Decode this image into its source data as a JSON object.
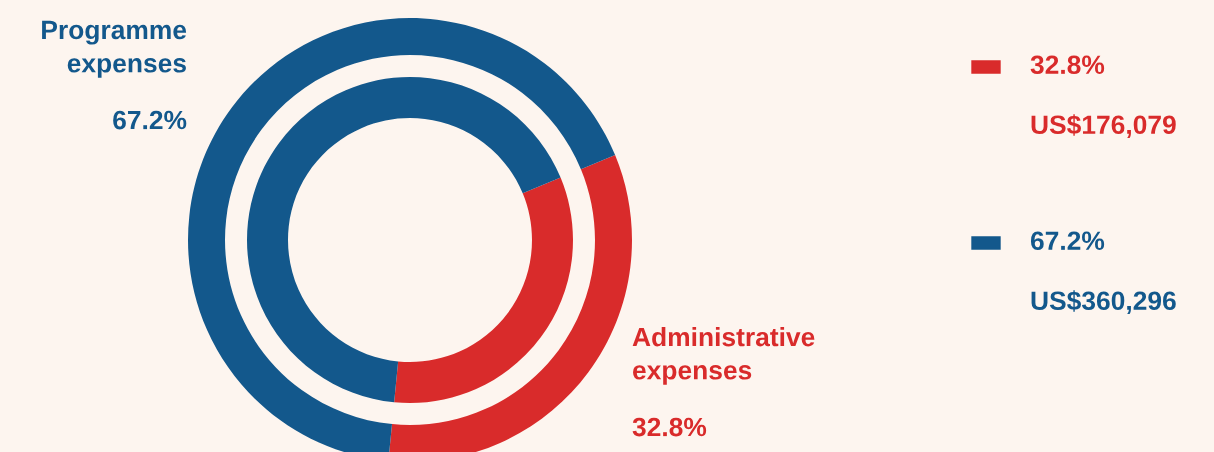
{
  "chart_data": {
    "type": "donut",
    "categories": [
      "Administrative expenses",
      "Programme expenses"
    ],
    "series": [
      {
        "values": [
          32.8,
          67.2
        ]
      },
      {
        "values": [
          32.8,
          67.2
        ]
      }
    ],
    "colors": [
      "#d92b2b",
      "#13588c"
    ],
    "value_labels": [
      "32.8%",
      "67.2%"
    ],
    "annotations": [
      "32.8%",
      "US$176,079",
      "67.2%",
      "US$360,296"
    ]
  }
}
